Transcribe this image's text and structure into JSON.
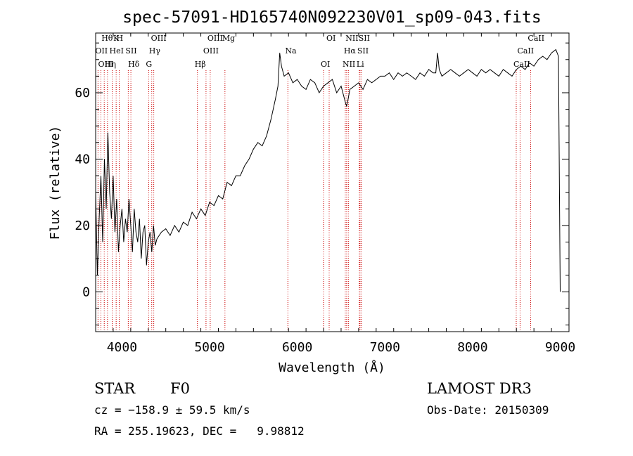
{
  "chart_data": {
    "type": "line",
    "title": "spec-57091-HD165740N092230V01_sp09-043.fits",
    "xlabel": "Wavelength (Å)",
    "ylabel": "Flux (relative)",
    "xlim": [
      3700,
      9100
    ],
    "ylim": [
      -12,
      78
    ],
    "xticks": [
      4000,
      5000,
      6000,
      7000,
      8000,
      9000
    ],
    "yticks": [
      0,
      20,
      40,
      60
    ],
    "grid": false,
    "series": [
      {
        "x": [
          3700,
          3720,
          3740,
          3760,
          3780,
          3800,
          3820,
          3840,
          3860,
          3880,
          3900,
          3920,
          3940,
          3960,
          3980,
          4000,
          4020,
          4040,
          4060,
          4080,
          4100,
          4120,
          4140,
          4160,
          4180,
          4200,
          4220,
          4240,
          4260,
          4280,
          4300,
          4320,
          4340,
          4360,
          4380,
          4400,
          4450,
          4500,
          4550,
          4600,
          4650,
          4700,
          4750,
          4800,
          4850,
          4900,
          4950,
          5000,
          5050,
          5100,
          5150,
          5200,
          5250,
          5300,
          5350,
          5400,
          5450,
          5500,
          5550,
          5600,
          5650,
          5700,
          5750,
          5780,
          5800,
          5820,
          5850,
          5900,
          5950,
          6000,
          6050,
          6100,
          6150,
          6200,
          6250,
          6300,
          6350,
          6400,
          6450,
          6500,
          6550,
          6563,
          6580,
          6600,
          6650,
          6700,
          6750,
          6800,
          6850,
          6900,
          6950,
          7000,
          7050,
          7100,
          7150,
          7200,
          7250,
          7300,
          7350,
          7400,
          7450,
          7500,
          7550,
          7580,
          7600,
          7620,
          7650,
          7700,
          7750,
          7800,
          7850,
          7900,
          7950,
          8000,
          8050,
          8100,
          8150,
          8200,
          8250,
          8300,
          8350,
          8400,
          8450,
          8500,
          8550,
          8600,
          8650,
          8700,
          8750,
          8800,
          8850,
          8900,
          8950,
          8980,
          9000
        ],
        "y": [
          30,
          5,
          22,
          35,
          15,
          40,
          25,
          48,
          30,
          22,
          35,
          18,
          28,
          12,
          20,
          25,
          15,
          22,
          18,
          28,
          20,
          12,
          25,
          18,
          15,
          22,
          10,
          18,
          20,
          8,
          15,
          18,
          12,
          20,
          14,
          16,
          18,
          19,
          17,
          20,
          18,
          21,
          20,
          24,
          22,
          25,
          23,
          27,
          26,
          29,
          28,
          33,
          32,
          35,
          35,
          38,
          40,
          43,
          45,
          44,
          47,
          52,
          58,
          62,
          72,
          68,
          65,
          66,
          63,
          64,
          62,
          61,
          64,
          63,
          60,
          62,
          63,
          64,
          60,
          62,
          57,
          56,
          58,
          61,
          62,
          63,
          61,
          64,
          63,
          64,
          65,
          65,
          66,
          64,
          66,
          65,
          66,
          65,
          64,
          66,
          65,
          67,
          66,
          66,
          72,
          67,
          65,
          66,
          67,
          66,
          65,
          66,
          67,
          66,
          65,
          67,
          66,
          67,
          66,
          65,
          67,
          66,
          65,
          67,
          68,
          67,
          69,
          68,
          70,
          71,
          70,
          72,
          73,
          71,
          0
        ]
      }
    ],
    "lines": [
      {
        "label": "Hθ",
        "x": 3798
      },
      {
        "label": "OII",
        "x": 3727
      },
      {
        "label": "OIII",
        "x": 3760
      },
      {
        "label": "K",
        "x": 3934
      },
      {
        "label": "HeI",
        "x": 3889
      },
      {
        "label": "Hη",
        "x": 3835
      },
      {
        "label": "H",
        "x": 3969
      },
      {
        "label": "SII",
        "x": 4072
      },
      {
        "label": "Hδ",
        "x": 4102
      },
      {
        "label": "OIII",
        "x": 4363
      },
      {
        "label": "Hγ",
        "x": 4340
      },
      {
        "label": "G",
        "x": 4305
      },
      {
        "label": "OIII",
        "x": 5007
      },
      {
        "label": "OIII",
        "x": 4959
      },
      {
        "label": "Hβ",
        "x": 4861
      },
      {
        "label": "Mg",
        "x": 5175
      },
      {
        "label": "Na",
        "x": 5893
      },
      {
        "label": "OI",
        "x": 6300
      },
      {
        "label": "OI",
        "x": 6364
      },
      {
        "label": "Hα",
        "x": 6563
      },
      {
        "label": "NII",
        "x": 6548
      },
      {
        "label": "NII",
        "x": 6583
      },
      {
        "label": "SII",
        "x": 6716
      },
      {
        "label": "Li",
        "x": 6708
      },
      {
        "label": "SII",
        "x": 6731
      },
      {
        "label": "CaII",
        "x": 8542
      },
      {
        "label": "CaII",
        "x": 8498
      },
      {
        "label": "CaII",
        "x": 8662
      }
    ]
  },
  "info": {
    "object_class": "STAR",
    "subclass": "F0",
    "survey": "LAMOST DR3",
    "cz": "cz = −158.9 ± 59.5 km/s",
    "obs_date": "Obs-Date: 20150309",
    "radec": "RA = 255.19623, DEC =   9.98812"
  }
}
